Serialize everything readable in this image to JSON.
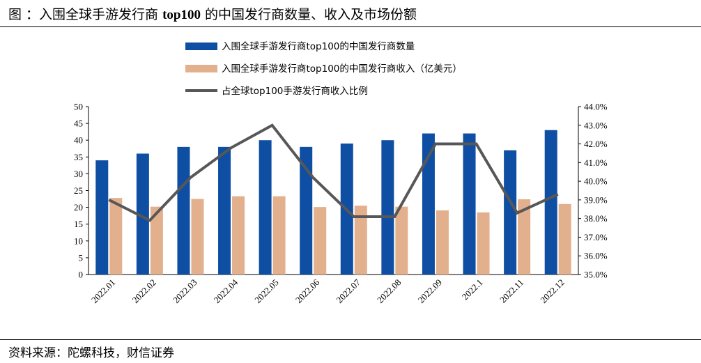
{
  "title": {
    "prefix": "图 ：入围全球手游发行商 ",
    "bold": "top100",
    "suffix": " 的中国发行商数量、收入及市场份额"
  },
  "source": "资料来源：陀螺科技，财信证券",
  "colors": {
    "count": "#0e4ea3",
    "revenue": "#e3b08e",
    "share": "#575757"
  },
  "chart_data": {
    "type": "bar",
    "categories": [
      "2022.01",
      "2022.02",
      "2022.03",
      "2022.04",
      "2022.05",
      "2022.06",
      "2022.07",
      "2022.08",
      "2022.09",
      "2022.1",
      "2022.11",
      "2022.12"
    ],
    "series": [
      {
        "name": "入围全球手游发行商top100的中国发行商数量",
        "type": "bar",
        "axis": "left",
        "values": [
          34,
          36,
          38,
          38,
          40,
          38,
          39,
          40,
          42,
          42,
          37,
          43
        ]
      },
      {
        "name": "入围全球手游发行商top100的中国发行商收入（亿美元）",
        "type": "bar",
        "axis": "left",
        "values": [
          22.8,
          20.2,
          22.5,
          23.3,
          23.3,
          20.1,
          20.5,
          20.2,
          19.1,
          18.5,
          22.4,
          21.0
        ]
      },
      {
        "name": "占全球top100手游发行商收入比例",
        "type": "line",
        "axis": "right",
        "values": [
          39.0,
          37.9,
          40.2,
          41.8,
          43.0,
          40.2,
          38.1,
          38.1,
          42.0,
          42.0,
          38.3,
          39.3
        ]
      }
    ],
    "y_left": {
      "min": 0,
      "max": 50,
      "step": 5,
      "ticks": [
        "0",
        "5",
        "10",
        "15",
        "20",
        "25",
        "30",
        "35",
        "40",
        "45",
        "50"
      ]
    },
    "y_right": {
      "min": 35,
      "max": 44,
      "step": 1,
      "ticks": [
        "35.0%",
        "36.0%",
        "37.0%",
        "38.0%",
        "39.0%",
        "40.0%",
        "41.0%",
        "42.0%",
        "43.0%",
        "44.0%"
      ]
    },
    "grid": false,
    "legend_position": "top"
  }
}
